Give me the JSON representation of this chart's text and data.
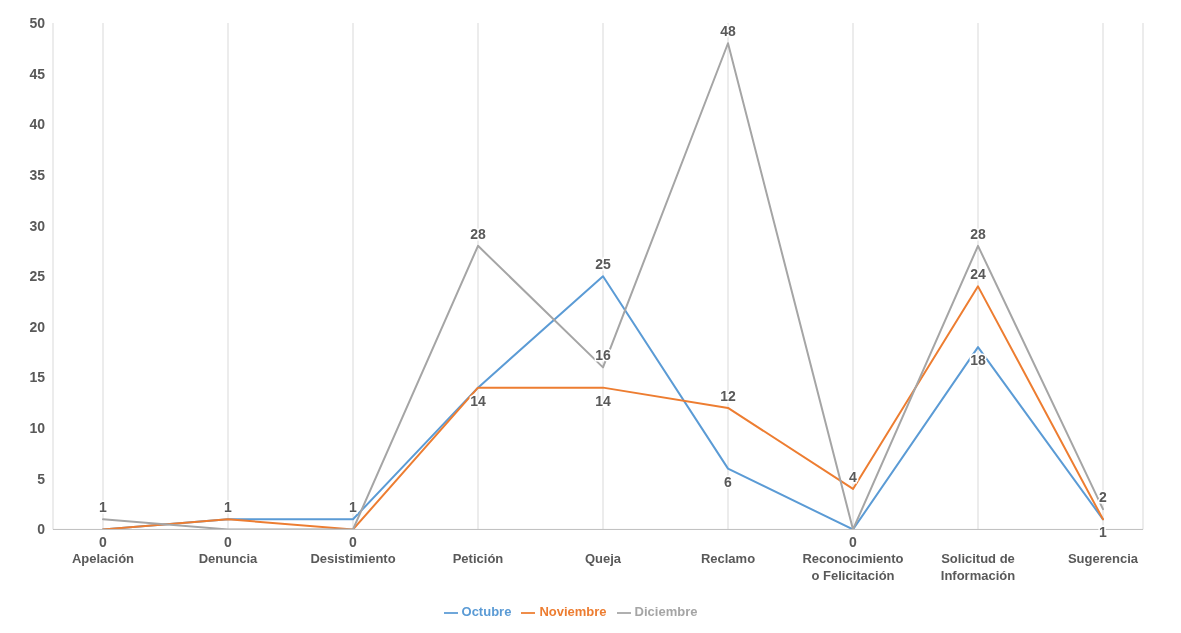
{
  "chart_data": {
    "type": "line",
    "categories": [
      "Apelación",
      "Denuncia",
      "Desistimiento",
      "Petición",
      "Queja",
      "Reclamo",
      "Reconocimiento o Felicitación",
      "Solicitud de Información",
      "Sugerencia"
    ],
    "series": [
      {
        "name": "Octubre",
        "color": "#5b9bd5",
        "values": [
          0,
          1,
          1,
          14,
          25,
          6,
          0,
          18,
          1
        ]
      },
      {
        "name": "Noviembre",
        "color": "#ed7d31",
        "values": [
          0,
          1,
          0,
          14,
          14,
          12,
          4,
          24,
          1
        ],
        "value_labels": [
          null,
          null,
          "0",
          null,
          "14",
          "12",
          "4",
          "24",
          null
        ]
      },
      {
        "name": "Diciembre",
        "color": "#a5a5a5",
        "values": [
          1,
          0,
          0,
          28,
          16,
          48,
          0,
          28,
          2
        ],
        "value_labels": [
          "1",
          "0",
          null,
          "28",
          "16",
          "48",
          null,
          "28",
          "2"
        ]
      }
    ],
    "ylim": [
      0,
      50
    ],
    "yticks": [
      0,
      5,
      10,
      15,
      20,
      25,
      30,
      35,
      40,
      45,
      50
    ],
    "grid": "x",
    "legend": "bottom",
    "marker": "none",
    "line_style": "solid",
    "data_labels": true
  }
}
